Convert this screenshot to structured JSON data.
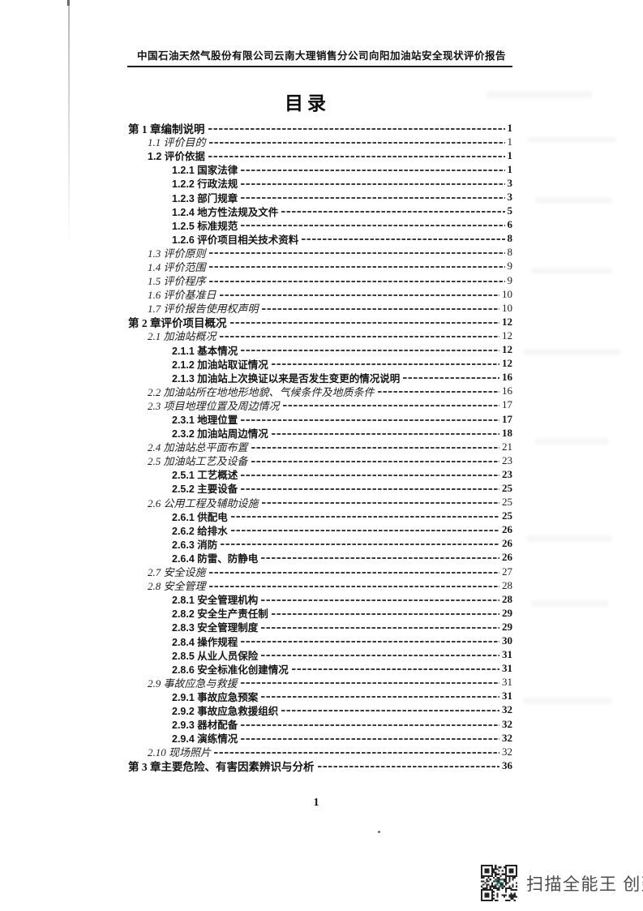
{
  "header": {
    "title": "中国石油天然气股份有限公司云南大理销售分公司向阳加油站安全现状评价报告"
  },
  "toc": {
    "title": "目录",
    "entries": [
      {
        "label": "第 1 章编制说明",
        "page": "1",
        "level": 0,
        "font": "song"
      },
      {
        "label": "1.1 评价目的",
        "page": "1",
        "level": 1,
        "font": "kai"
      },
      {
        "label": "1.2 评价依据",
        "page": "1",
        "level": 1,
        "font": "hei"
      },
      {
        "label": "1.2.1 国家法律",
        "page": "1",
        "level": 2,
        "font": "hei"
      },
      {
        "label": "1.2.2 行政法规",
        "page": "3",
        "level": 2,
        "font": "hei"
      },
      {
        "label": "1.2.3 部门规章",
        "page": "3",
        "level": 2,
        "font": "hei"
      },
      {
        "label": "1.2.4 地方性法规及文件",
        "page": "5",
        "level": 2,
        "font": "hei"
      },
      {
        "label": "1.2.5 标准规范",
        "page": "6",
        "level": 2,
        "font": "hei"
      },
      {
        "label": "1.2.6 评价项目相关技术资料",
        "page": "8",
        "level": 2,
        "font": "hei"
      },
      {
        "label": "1.3 评价原则",
        "page": "8",
        "level": 1,
        "font": "kai"
      },
      {
        "label": "1.4 评价范围",
        "page": "9",
        "level": 1,
        "font": "kai"
      },
      {
        "label": "1.5 评价程序",
        "page": "9",
        "level": 1,
        "font": "kai"
      },
      {
        "label": "1.6 评价基准日",
        "page": "10",
        "level": 1,
        "font": "kai"
      },
      {
        "label": "1.7 评价报告使用权声明",
        "page": "10",
        "level": 1,
        "font": "kai"
      },
      {
        "label": "第 2 章评价项目概况",
        "page": "12",
        "level": 0,
        "font": "song"
      },
      {
        "label": "2.1 加油站概况",
        "page": "12",
        "level": 1,
        "font": "kai"
      },
      {
        "label": "2.1.1 基本情况",
        "page": "12",
        "level": 2,
        "font": "hei"
      },
      {
        "label": "2.1.2 加油站取证情况",
        "page": "12",
        "level": 2,
        "font": "hei"
      },
      {
        "label": "2.1.3 加油站上次换证以来是否发生变更的情况说明",
        "page": "16",
        "level": 2,
        "font": "hei"
      },
      {
        "label": "2.2 加油站所在地地形地貌、气候条件及地质条件",
        "page": "16",
        "level": 1,
        "font": "kai"
      },
      {
        "label": "2.3 项目地理位置及周边情况",
        "page": "17",
        "level": 1,
        "font": "kai"
      },
      {
        "label": "2.3.1 地理位置",
        "page": "17",
        "level": 2,
        "font": "hei"
      },
      {
        "label": "2.3.2 加油站周边情况",
        "page": "18",
        "level": 2,
        "font": "hei"
      },
      {
        "label": "2.4 加油站总平面布置",
        "page": "21",
        "level": 1,
        "font": "kai"
      },
      {
        "label": "2.5 加油站工艺及设备",
        "page": "23",
        "level": 1,
        "font": "kai"
      },
      {
        "label": "2.5.1 工艺概述",
        "page": "23",
        "level": 2,
        "font": "hei"
      },
      {
        "label": "2.5.2 主要设备",
        "page": "25",
        "level": 2,
        "font": "hei"
      },
      {
        "label": "2.6 公用工程及辅助设施",
        "page": "25",
        "level": 1,
        "font": "kai"
      },
      {
        "label": "2.6.1 供配电",
        "page": "25",
        "level": 2,
        "font": "hei"
      },
      {
        "label": "2.6.2 给排水",
        "page": "26",
        "level": 2,
        "font": "hei"
      },
      {
        "label": "2.6.3 消防",
        "page": "26",
        "level": 2,
        "font": "hei"
      },
      {
        "label": "2.6.4 防雷、防静电",
        "page": "26",
        "level": 2,
        "font": "hei"
      },
      {
        "label": "2.7 安全设施",
        "page": "27",
        "level": 1,
        "font": "kai"
      },
      {
        "label": "2.8 安全管理",
        "page": "28",
        "level": 1,
        "font": "kai"
      },
      {
        "label": "2.8.1 安全管理机构",
        "page": "28",
        "level": 2,
        "font": "hei"
      },
      {
        "label": "2.8.2 安全生产责任制",
        "page": "29",
        "level": 2,
        "font": "hei"
      },
      {
        "label": "2.8.3 安全管理制度",
        "page": "29",
        "level": 2,
        "font": "hei"
      },
      {
        "label": "2.8.4 操作规程",
        "page": "30",
        "level": 2,
        "font": "hei"
      },
      {
        "label": "2.8.5 从业人员保险",
        "page": "31",
        "level": 2,
        "font": "hei"
      },
      {
        "label": "2.8.6 安全标准化创建情况",
        "page": "31",
        "level": 2,
        "font": "hei"
      },
      {
        "label": "2.9 事故应急与救援",
        "page": "31",
        "level": 1,
        "font": "kai"
      },
      {
        "label": "2.9.1 事故应急预案",
        "page": "31",
        "level": 2,
        "font": "hei"
      },
      {
        "label": "2.9.2 事故应急救援组织",
        "page": "32",
        "level": 2,
        "font": "hei"
      },
      {
        "label": "2.9.3 器材配备",
        "page": "32",
        "level": 2,
        "font": "hei"
      },
      {
        "label": "2.9.4 演练情况",
        "page": "32",
        "level": 2,
        "font": "hei"
      },
      {
        "label": "2.10 现场照片",
        "page": "32",
        "level": 1,
        "font": "kai"
      },
      {
        "label": "第 3 章主要危险、有害因素辨识与分析",
        "page": "36",
        "level": 0,
        "font": "song"
      }
    ]
  },
  "footer": {
    "page_number": "1",
    "watermark": "扫描全能王 创建",
    "qr_icon": "qr-code-icon"
  },
  "colors": {
    "ink": "#161616",
    "leader": "#3c3c3c",
    "watermark_gray": "#4b4b4b",
    "paper": "#ffffff"
  }
}
